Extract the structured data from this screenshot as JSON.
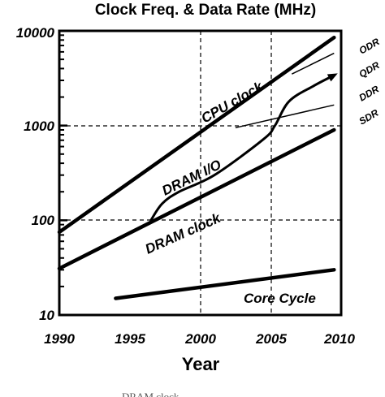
{
  "chart_data": {
    "type": "line",
    "title": "Clock Freq. & Data Rate (MHz)",
    "xlabel": "Year",
    "ylabel": "",
    "xlim": [
      1990,
      2010
    ],
    "ylim": [
      10,
      10000
    ],
    "yscale": "log",
    "grid": "dashed at x=2000, 2005 and y=100, 1000",
    "x_ticks": [
      "1990",
      "1995",
      "2000",
      "2005",
      "2010"
    ],
    "y_ticks": [
      "10",
      "100",
      "1000",
      "10000"
    ],
    "annotations": [
      "CPU clock",
      "DRAM I/O",
      "DRAM clock",
      "Core Cycle"
    ],
    "right_labels": [
      "ODR",
      "QDR",
      "DDR",
      "SDR"
    ],
    "series": [
      {
        "name": "CPU clock",
        "x": [
          1990,
          2009.5
        ],
        "y": [
          75,
          8500
        ]
      },
      {
        "name": "DRAM clock",
        "x": [
          1990,
          2009.5
        ],
        "y": [
          31,
          900
        ]
      },
      {
        "name": "DRAM I/O",
        "x": [
          1996.5,
          1997.3,
          1998.5,
          2001,
          2004.5,
          2005.3,
          2006.3,
          2008,
          2009.5
        ],
        "y": [
          100,
          150,
          200,
          300,
          720,
          1000,
          1800,
          2600,
          3400
        ]
      },
      {
        "name": "Core Cycle",
        "x": [
          1994,
          2009.5
        ],
        "y": [
          15,
          30
        ]
      },
      {
        "name": "SDR",
        "x": [
          2002.5,
          2009.5
        ],
        "y": [
          950,
          1650
        ]
      },
      {
        "name": "QDR",
        "x": [
          2006.5,
          2009.5
        ],
        "y": [
          3500,
          5800
        ]
      }
    ]
  },
  "footer_text": "DRAM clock"
}
